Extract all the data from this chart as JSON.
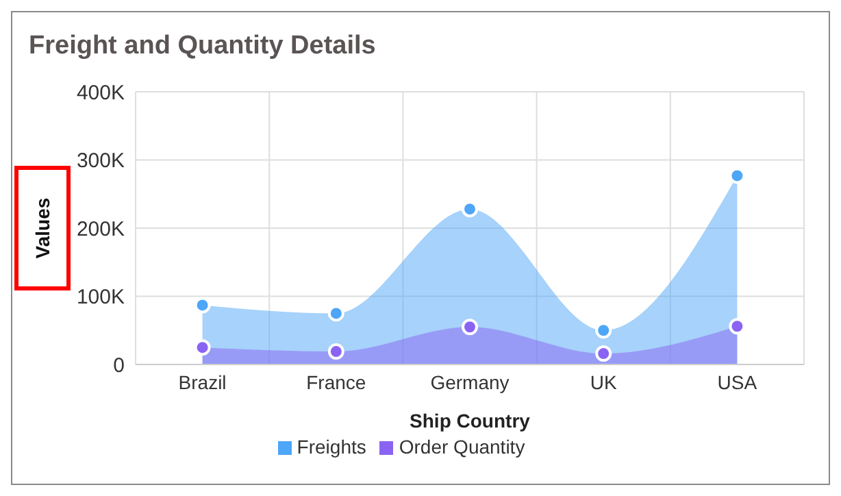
{
  "chart_data": {
    "type": "area",
    "title": "Freight and Quantity Details",
    "xlabel": "Ship Country",
    "ylabel": "Values",
    "categories": [
      "Brazil",
      "France",
      "Germany",
      "UK",
      "USA"
    ],
    "series": [
      {
        "name": "Freights",
        "color": "#4da6f7",
        "values": [
          87000,
          75000,
          228000,
          50000,
          277000
        ]
      },
      {
        "name": "Order Quantity",
        "color": "#8a63f2",
        "values": [
          25000,
          19000,
          55000,
          16000,
          56000
        ]
      }
    ],
    "ylim": [
      0,
      400000
    ],
    "yticks": [
      {
        "value": 0,
        "label": "0"
      },
      {
        "value": 100000,
        "label": "100K"
      },
      {
        "value": 200000,
        "label": "200K"
      },
      {
        "value": 300000,
        "label": "300K"
      },
      {
        "value": 400000,
        "label": "400K"
      }
    ],
    "grid": true,
    "legend": "bottom",
    "marker": "circle"
  }
}
